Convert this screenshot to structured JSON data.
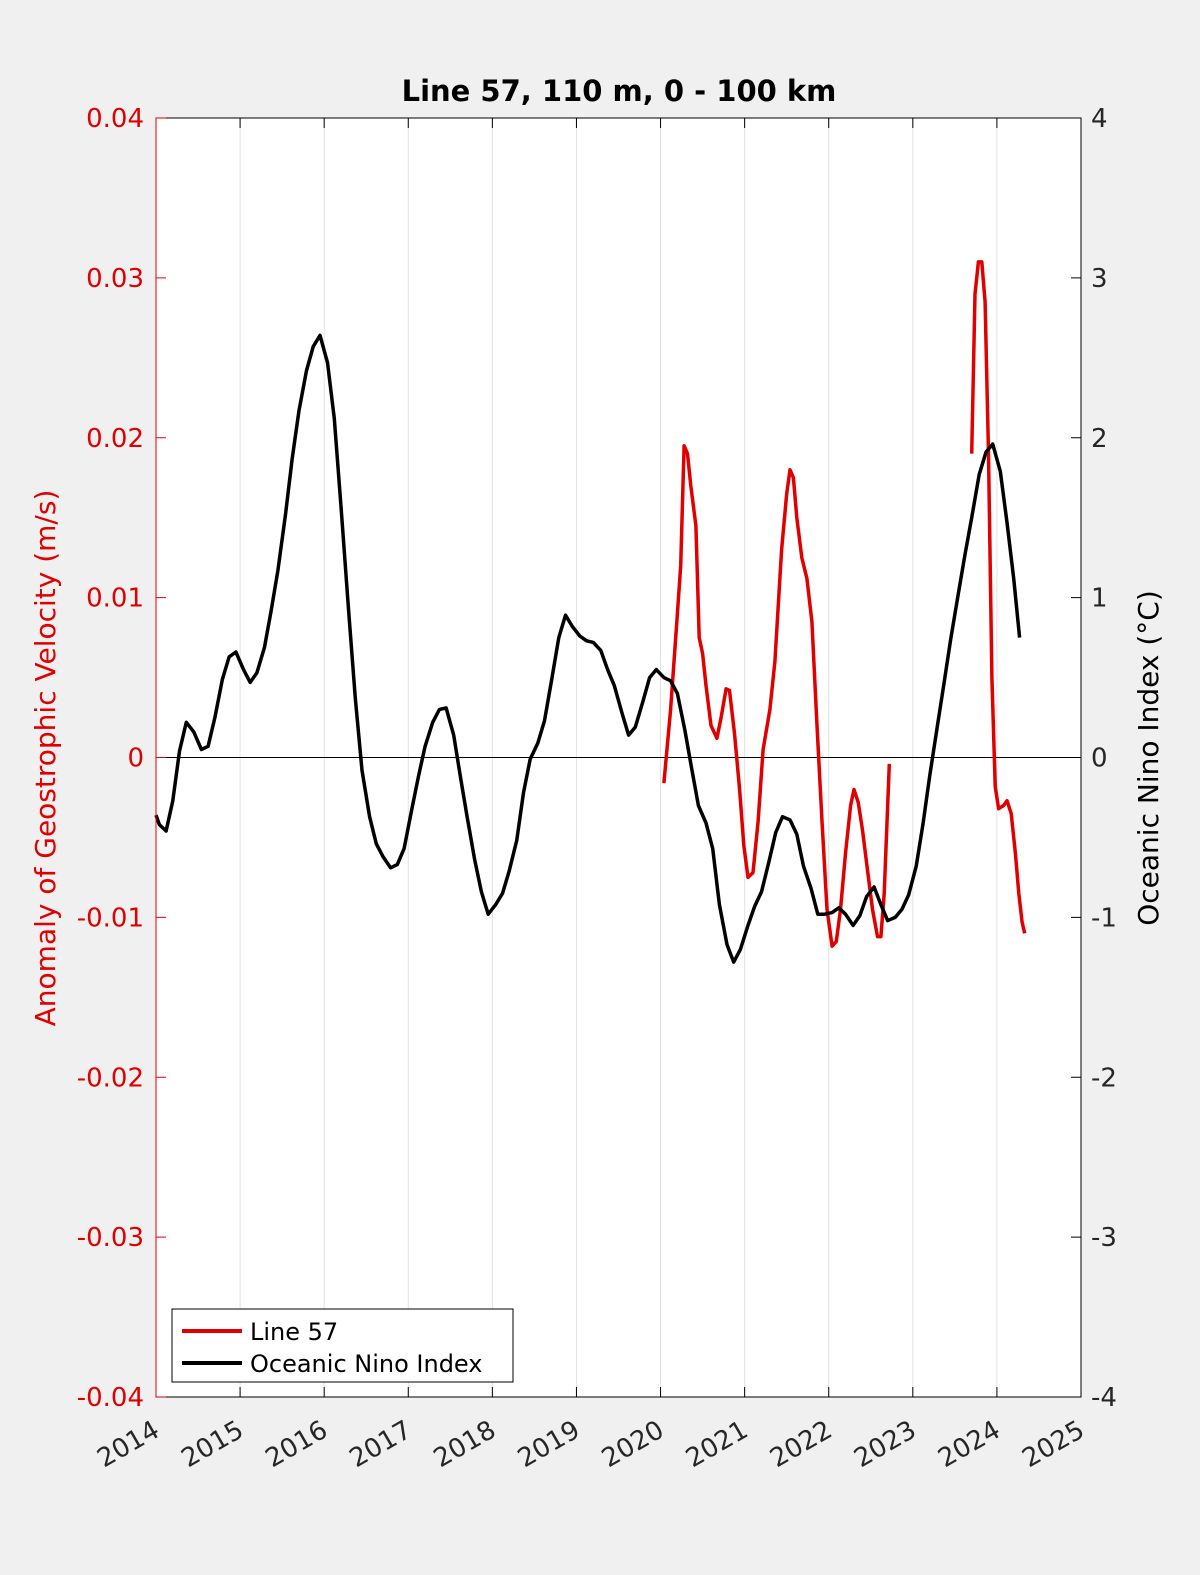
{
  "chart_data": {
    "type": "line",
    "title": "Line 57, 110 m, 0 - 100 km",
    "ylabel_left": "Anomaly of Geostrophic Velocity (m/s)",
    "ylabel_right": "Oceanic Nino Index (°C)",
    "xlabel": "",
    "xlim": [
      2014,
      2025
    ],
    "ylim_left": [
      -0.04,
      0.04
    ],
    "ylim_right": [
      -4,
      4
    ],
    "x_ticks": [
      "2014",
      "2015",
      "2016",
      "2017",
      "2018",
      "2019",
      "2020",
      "2021",
      "2022",
      "2023",
      "2024",
      "2025"
    ],
    "y_ticks_left": [
      "-0.04",
      "-0.03",
      "-0.02",
      "-0.01",
      "0",
      "0.01",
      "0.02",
      "0.03",
      "0.04"
    ],
    "y_ticks_right": [
      "-4",
      "-3",
      "-2",
      "-1",
      "0",
      "1",
      "2",
      "3",
      "4"
    ],
    "grid": "vertical",
    "legend_position": "bottom-left",
    "colors": {
      "line57": "#e00000",
      "oni": "#000000",
      "left_axis": "#e00000",
      "right_axis": "#000000"
    },
    "series": [
      {
        "name": "Line 57",
        "axis": "left",
        "color": "#e00000",
        "segments": [
          [
            [
              2020.04,
              -0.0016
            ],
            [
              2020.12,
              0.003
            ],
            [
              2020.2,
              0.009
            ],
            [
              2020.24,
              0.012
            ],
            [
              2020.28,
              0.0195
            ],
            [
              2020.32,
              0.019
            ],
            [
              2020.36,
              0.017
            ],
            [
              2020.42,
              0.0145
            ],
            [
              2020.46,
              0.0075
            ],
            [
              2020.5,
              0.0065
            ],
            [
              2020.54,
              0.0045
            ],
            [
              2020.6,
              0.002
            ],
            [
              2020.67,
              0.0012
            ],
            [
              2020.72,
              0.0025
            ],
            [
              2020.78,
              0.0043
            ],
            [
              2020.82,
              0.0042
            ],
            [
              2020.88,
              0.0015
            ],
            [
              2020.94,
              -0.002
            ],
            [
              2020.99,
              -0.0055
            ],
            [
              2021.04,
              -0.0075
            ],
            [
              2021.1,
              -0.0072
            ],
            [
              2021.16,
              -0.004
            ],
            [
              2021.22,
              0.0005
            ],
            [
              2021.3,
              0.003
            ],
            [
              2021.36,
              0.006
            ],
            [
              2021.44,
              0.013
            ],
            [
              2021.5,
              0.0165
            ],
            [
              2021.54,
              0.018
            ],
            [
              2021.58,
              0.0175
            ],
            [
              2021.62,
              0.015
            ],
            [
              2021.68,
              0.0125
            ],
            [
              2021.74,
              0.0112
            ],
            [
              2021.8,
              0.0085
            ],
            [
              2021.86,
              0.002
            ],
            [
              2021.92,
              -0.004
            ],
            [
              2021.98,
              -0.0095
            ],
            [
              2022.04,
              -0.0118
            ],
            [
              2022.09,
              -0.0115
            ],
            [
              2022.14,
              -0.0095
            ],
            [
              2022.2,
              -0.006
            ],
            [
              2022.26,
              -0.003
            ],
            [
              2022.3,
              -0.002
            ],
            [
              2022.35,
              -0.0028
            ],
            [
              2022.4,
              -0.0045
            ],
            [
              2022.46,
              -0.007
            ],
            [
              2022.52,
              -0.0095
            ],
            [
              2022.58,
              -0.0112
            ],
            [
              2022.62,
              -0.0112
            ],
            [
              2022.66,
              -0.0085
            ],
            [
              2022.72,
              -0.0004
            ]
          ],
          [
            [
              2023.7,
              0.019
            ],
            [
              2023.74,
              0.029
            ],
            [
              2023.78,
              0.031
            ],
            [
              2023.82,
              0.031
            ],
            [
              2023.86,
              0.0285
            ],
            [
              2023.9,
              0.019
            ],
            [
              2023.94,
              0.005
            ],
            [
              2023.98,
              -0.0018
            ],
            [
              2024.02,
              -0.0032
            ],
            [
              2024.08,
              -0.003
            ],
            [
              2024.12,
              -0.0027
            ],
            [
              2024.17,
              -0.0035
            ],
            [
              2024.22,
              -0.006
            ],
            [
              2024.26,
              -0.0085
            ],
            [
              2024.3,
              -0.0103
            ],
            [
              2024.33,
              -0.011
            ]
          ]
        ]
      },
      {
        "name": "Oceanic Nino Index",
        "axis": "right",
        "color": "#000000",
        "points": [
          [
            2014.0,
            -0.36
          ],
          [
            2014.04,
            -0.42
          ],
          [
            2014.12,
            -0.46
          ],
          [
            2014.2,
            -0.27
          ],
          [
            2014.28,
            0.04
          ],
          [
            2014.36,
            0.22
          ],
          [
            2014.45,
            0.16
          ],
          [
            2014.54,
            0.05
          ],
          [
            2014.62,
            0.07
          ],
          [
            2014.7,
            0.25
          ],
          [
            2014.79,
            0.49
          ],
          [
            2014.87,
            0.63
          ],
          [
            2014.95,
            0.66
          ],
          [
            2015.04,
            0.55
          ],
          [
            2015.12,
            0.47
          ],
          [
            2015.2,
            0.53
          ],
          [
            2015.29,
            0.69
          ],
          [
            2015.37,
            0.92
          ],
          [
            2015.45,
            1.17
          ],
          [
            2015.54,
            1.52
          ],
          [
            2015.62,
            1.87
          ],
          [
            2015.7,
            2.17
          ],
          [
            2015.79,
            2.42
          ],
          [
            2015.87,
            2.57
          ],
          [
            2015.95,
            2.64
          ],
          [
            2016.04,
            2.47
          ],
          [
            2016.12,
            2.12
          ],
          [
            2016.2,
            1.57
          ],
          [
            2016.29,
            0.92
          ],
          [
            2016.37,
            0.37
          ],
          [
            2016.45,
            -0.08
          ],
          [
            2016.54,
            -0.37
          ],
          [
            2016.62,
            -0.54
          ],
          [
            2016.7,
            -0.62
          ],
          [
            2016.79,
            -0.69
          ],
          [
            2016.87,
            -0.67
          ],
          [
            2016.95,
            -0.57
          ],
          [
            2017.04,
            -0.33
          ],
          [
            2017.12,
            -0.12
          ],
          [
            2017.2,
            0.07
          ],
          [
            2017.29,
            0.22
          ],
          [
            2017.37,
            0.3
          ],
          [
            2017.45,
            0.31
          ],
          [
            2017.54,
            0.14
          ],
          [
            2017.62,
            -0.12
          ],
          [
            2017.7,
            -0.37
          ],
          [
            2017.79,
            -0.64
          ],
          [
            2017.87,
            -0.84
          ],
          [
            2017.95,
            -0.98
          ],
          [
            2018.04,
            -0.92
          ],
          [
            2018.12,
            -0.85
          ],
          [
            2018.2,
            -0.71
          ],
          [
            2018.29,
            -0.52
          ],
          [
            2018.37,
            -0.22
          ],
          [
            2018.45,
            -0.01
          ],
          [
            2018.54,
            0.09
          ],
          [
            2018.62,
            0.23
          ],
          [
            2018.7,
            0.47
          ],
          [
            2018.79,
            0.75
          ],
          [
            2018.87,
            0.89
          ],
          [
            2018.95,
            0.82
          ],
          [
            2019.04,
            0.76
          ],
          [
            2019.12,
            0.73
          ],
          [
            2019.2,
            0.72
          ],
          [
            2019.29,
            0.67
          ],
          [
            2019.37,
            0.55
          ],
          [
            2019.45,
            0.45
          ],
          [
            2019.54,
            0.28
          ],
          [
            2019.62,
            0.14
          ],
          [
            2019.7,
            0.19
          ],
          [
            2019.79,
            0.35
          ],
          [
            2019.87,
            0.5
          ],
          [
            2019.95,
            0.55
          ],
          [
            2020.04,
            0.5
          ],
          [
            2020.12,
            0.48
          ],
          [
            2020.2,
            0.4
          ],
          [
            2020.29,
            0.17
          ],
          [
            2020.37,
            -0.07
          ],
          [
            2020.45,
            -0.3
          ],
          [
            2020.54,
            -0.41
          ],
          [
            2020.62,
            -0.57
          ],
          [
            2020.7,
            -0.92
          ],
          [
            2020.79,
            -1.17
          ],
          [
            2020.87,
            -1.28
          ],
          [
            2020.95,
            -1.2
          ],
          [
            2021.04,
            -1.05
          ],
          [
            2021.12,
            -0.93
          ],
          [
            2021.2,
            -0.84
          ],
          [
            2021.29,
            -0.65
          ],
          [
            2021.37,
            -0.47
          ],
          [
            2021.45,
            -0.37
          ],
          [
            2021.54,
            -0.39
          ],
          [
            2021.62,
            -0.48
          ],
          [
            2021.7,
            -0.68
          ],
          [
            2021.79,
            -0.82
          ],
          [
            2021.87,
            -0.98
          ],
          [
            2021.95,
            -0.98
          ],
          [
            2022.04,
            -0.97
          ],
          [
            2022.12,
            -0.94
          ],
          [
            2022.2,
            -0.98
          ],
          [
            2022.29,
            -1.05
          ],
          [
            2022.37,
            -0.99
          ],
          [
            2022.45,
            -0.87
          ],
          [
            2022.54,
            -0.81
          ],
          [
            2022.62,
            -0.92
          ],
          [
            2022.7,
            -1.02
          ],
          [
            2022.79,
            -1.0
          ],
          [
            2022.87,
            -0.95
          ],
          [
            2022.95,
            -0.86
          ],
          [
            2023.04,
            -0.68
          ],
          [
            2023.12,
            -0.42
          ],
          [
            2023.2,
            -0.12
          ],
          [
            2023.29,
            0.19
          ],
          [
            2023.37,
            0.46
          ],
          [
            2023.45,
            0.74
          ],
          [
            2023.54,
            1.02
          ],
          [
            2023.62,
            1.27
          ],
          [
            2023.7,
            1.5
          ],
          [
            2023.79,
            1.77
          ],
          [
            2023.87,
            1.91
          ],
          [
            2023.95,
            1.96
          ],
          [
            2024.04,
            1.79
          ],
          [
            2024.12,
            1.47
          ],
          [
            2024.2,
            1.12
          ],
          [
            2024.27,
            0.75
          ]
        ]
      }
    ]
  }
}
